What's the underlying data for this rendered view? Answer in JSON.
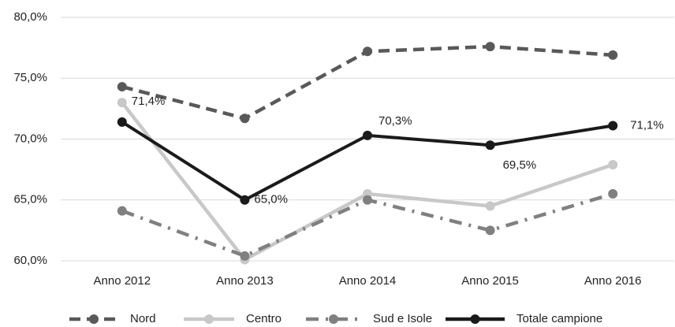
{
  "chart_data": {
    "type": "line",
    "categories": [
      "Anno 2012",
      "Anno 2013",
      "Anno 2014",
      "Anno 2015",
      "Anno 2016"
    ],
    "series": [
      {
        "name": "Nord",
        "color": "#595959",
        "line_style": "dash",
        "values": [
          74.3,
          71.7,
          77.2,
          77.6,
          76.9
        ]
      },
      {
        "name": "Centro",
        "color": "#c8c8c8",
        "line_style": "solid",
        "values": [
          73.0,
          60.1,
          65.5,
          64.5,
          67.9
        ]
      },
      {
        "name": "Sud e Isole",
        "color": "#808080",
        "line_style": "dash-dot",
        "values": [
          64.1,
          60.4,
          65.0,
          62.5,
          65.5
        ]
      },
      {
        "name": "Totale campione",
        "color": "#1a1a1a",
        "line_style": "solid",
        "values": [
          71.4,
          65.0,
          70.3,
          69.5,
          71.1
        ],
        "value_labels": [
          "71,4%",
          "65,0%",
          "70,3%",
          "69,5%",
          "71,1%"
        ]
      }
    ],
    "ylim": [
      60,
      80
    ],
    "yticks": [
      {
        "value": 60,
        "label": "60,0%"
      },
      {
        "value": 65,
        "label": "65,0%"
      },
      {
        "value": 70,
        "label": "70,0%"
      },
      {
        "value": 75,
        "label": "75,0%"
      },
      {
        "value": 80,
        "label": "80,0%"
      }
    ],
    "grid": true,
    "legend": "bottom"
  }
}
